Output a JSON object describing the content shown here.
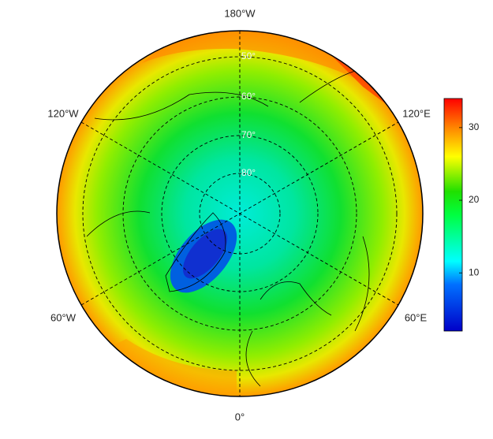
{
  "map": {
    "meridian_labels": [
      "180°W",
      "120°W",
      "120°E",
      "60°W",
      "60°E",
      "0°"
    ],
    "parallel_labels": [
      "50°",
      "60°",
      "70°",
      "80°"
    ],
    "colorbar": {
      "lim": [
        2,
        34
      ],
      "ticks": [
        10,
        20,
        30
      ]
    }
  }
}
